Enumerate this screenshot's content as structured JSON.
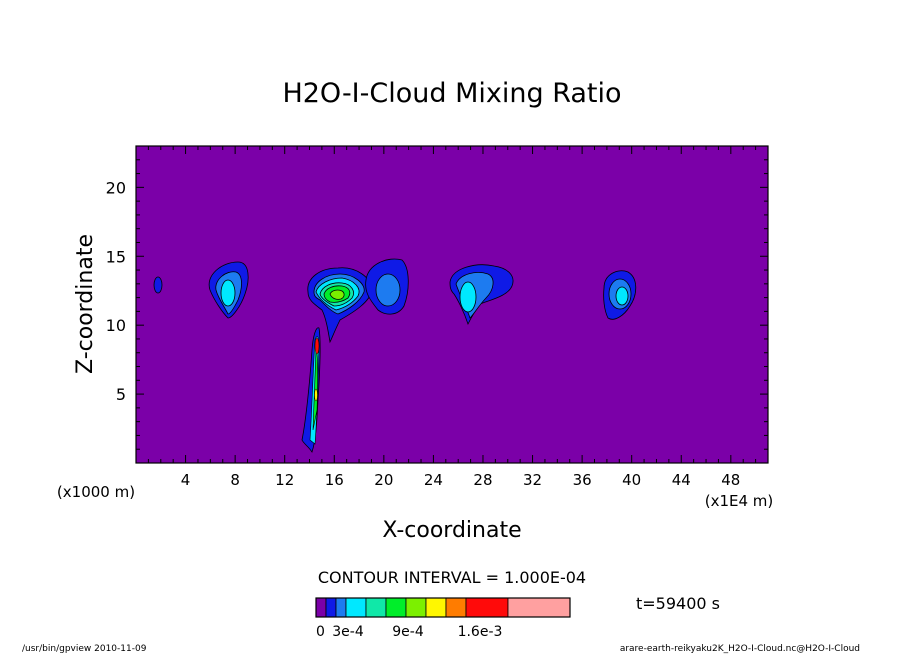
{
  "chart_data": {
    "type": "heatmap",
    "title": "H2O-I-Cloud Mixing Ratio",
    "xlabel": "X-coordinate",
    "ylabel": "Z-coordinate",
    "x_unit_left": "(x1000 m)",
    "x_unit_right": "(x1E4 m)",
    "xlim": [
      0,
      51
    ],
    "ylim": [
      0,
      23
    ],
    "x_ticks": [
      4,
      8,
      12,
      16,
      20,
      24,
      28,
      32,
      36,
      40,
      44,
      48
    ],
    "y_ticks": [
      5,
      10,
      15,
      20
    ],
    "background_color": "#7B00A8",
    "contour_interval_text": "CONTOUR INTERVAL = 1.000E-04",
    "time_label": "t=59400 s",
    "colorbar": {
      "colors": [
        "#7B00A8",
        "#0F1AE6",
        "#1D7BF0",
        "#00E8FF",
        "#10E8A8",
        "#00EE2A",
        "#7CF000",
        "#FFF700",
        "#FF7C00",
        "#FF0A0A",
        "#FFA0A0"
      ],
      "labels": [
        "0",
        "3e-4",
        "9e-4",
        "1.6e-3"
      ]
    },
    "cloud_cells": [
      {
        "x": 1.8,
        "z": 12.8,
        "levels": 1
      },
      {
        "x": 7.3,
        "z": 12.6,
        "levels": 3
      },
      {
        "x": 15.6,
        "z": 12.4,
        "levels": 6
      },
      {
        "x": 20.5,
        "z": 12.8,
        "levels": 2
      },
      {
        "x": 26.8,
        "z": 12.4,
        "levels": 3
      },
      {
        "x": 39.2,
        "z": 12.2,
        "levels": 3
      },
      {
        "x": 14.6,
        "z": 5.0,
        "levels": 10
      }
    ]
  },
  "footer": {
    "left": "/usr/bin/gpview   2010-11-09",
    "right": "arare-earth-reikyaku2K_H2O-I-Cloud.nc@H2O-I-Cloud"
  }
}
